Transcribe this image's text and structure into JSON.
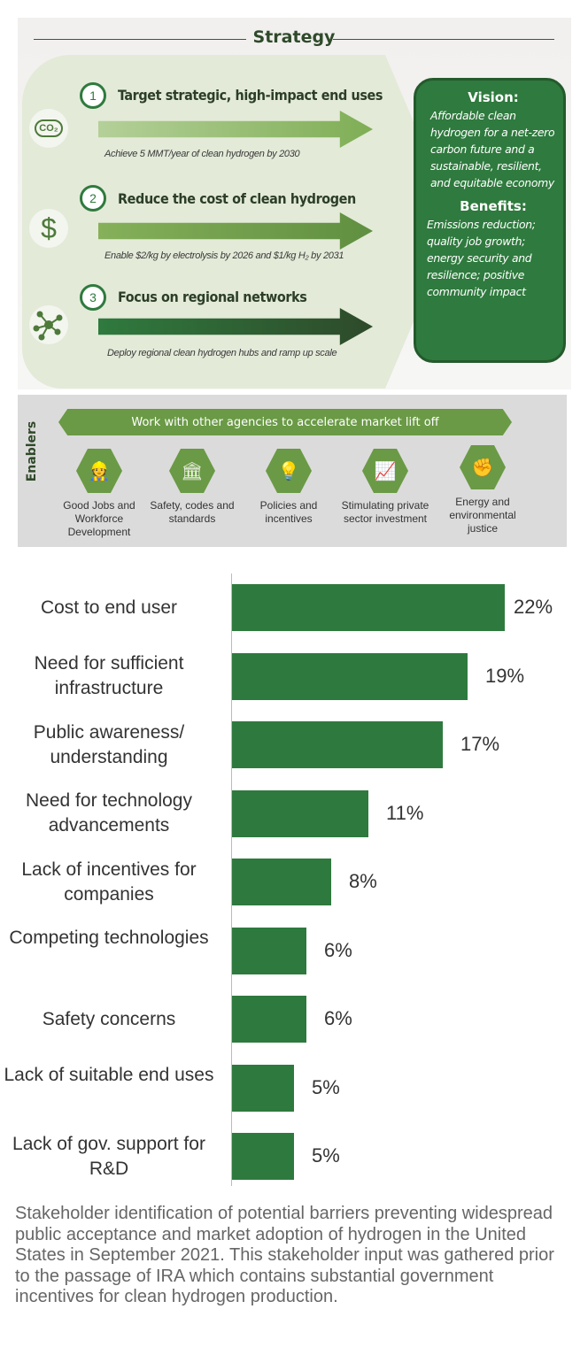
{
  "strategy": {
    "title": "Strategy",
    "items": [
      {
        "number": "1",
        "heading": "Target strategic, high-impact end uses",
        "detail": "Achieve 5 MMT/year of clean hydrogen by 2030",
        "icon": "co2-cloud-icon"
      },
      {
        "number": "2",
        "heading": "Reduce the cost of clean hydrogen",
        "detail": "Enable $2/kg by electrolysis by 2026 and $1/kg H₂ by 2031",
        "icon": "dollar-icon"
      },
      {
        "number": "3",
        "heading": "Focus on regional networks",
        "detail": "Deploy regional clean hydrogen hubs and ramp up scale",
        "icon": "network-icon"
      }
    ],
    "vision_title": "Vision:",
    "vision_text": "Affordable clean hydrogen for a net-zero carbon future and a sustainable, resilient, and equitable economy",
    "benefits_title": "Benefits:",
    "benefits_text": "Emissions reduction; quality job growth; energy security and resilience; positive community impact"
  },
  "enablers": {
    "label": "Enablers",
    "banner": "Work with other agencies to accelerate market lift off",
    "items": [
      {
        "label": "Good Jobs and Workforce Development",
        "icon": "worker-icon"
      },
      {
        "label": "Safety, codes and standards",
        "icon": "building-columns-icon"
      },
      {
        "label": "Policies and incentives",
        "icon": "lightbulb-icon"
      },
      {
        "label": "Stimulating private sector investment",
        "icon": "growth-chart-icon"
      },
      {
        "label": "Energy and environmental justice",
        "icon": "people-icon"
      }
    ]
  },
  "chart_data": {
    "type": "bar",
    "orientation": "horizontal",
    "categories": [
      "Cost to end user",
      "Need for sufficient infrastructure",
      "Public awareness/ understanding",
      "Need for technology advancements",
      "Lack of incentives for companies",
      "Competing technologies",
      "Safety concerns",
      "Lack of suitable end uses",
      "Lack of gov. support for R&D"
    ],
    "values": [
      22,
      19,
      17,
      11,
      8,
      6,
      6,
      5,
      5
    ],
    "labels": [
      "22%",
      "19%",
      "17%",
      "11%",
      "8%",
      "6%",
      "6%",
      "5%",
      "5%"
    ],
    "color": "#2e7a3e",
    "grid": false
  },
  "caption": "Stakeholder identification of potential barriers preventing widespread public acceptance and market adoption of hydrogen in the United States in September 2021. This stakeholder input was gathered prior to the passage of IRA which contains substantial government incentives for clean hydrogen production."
}
